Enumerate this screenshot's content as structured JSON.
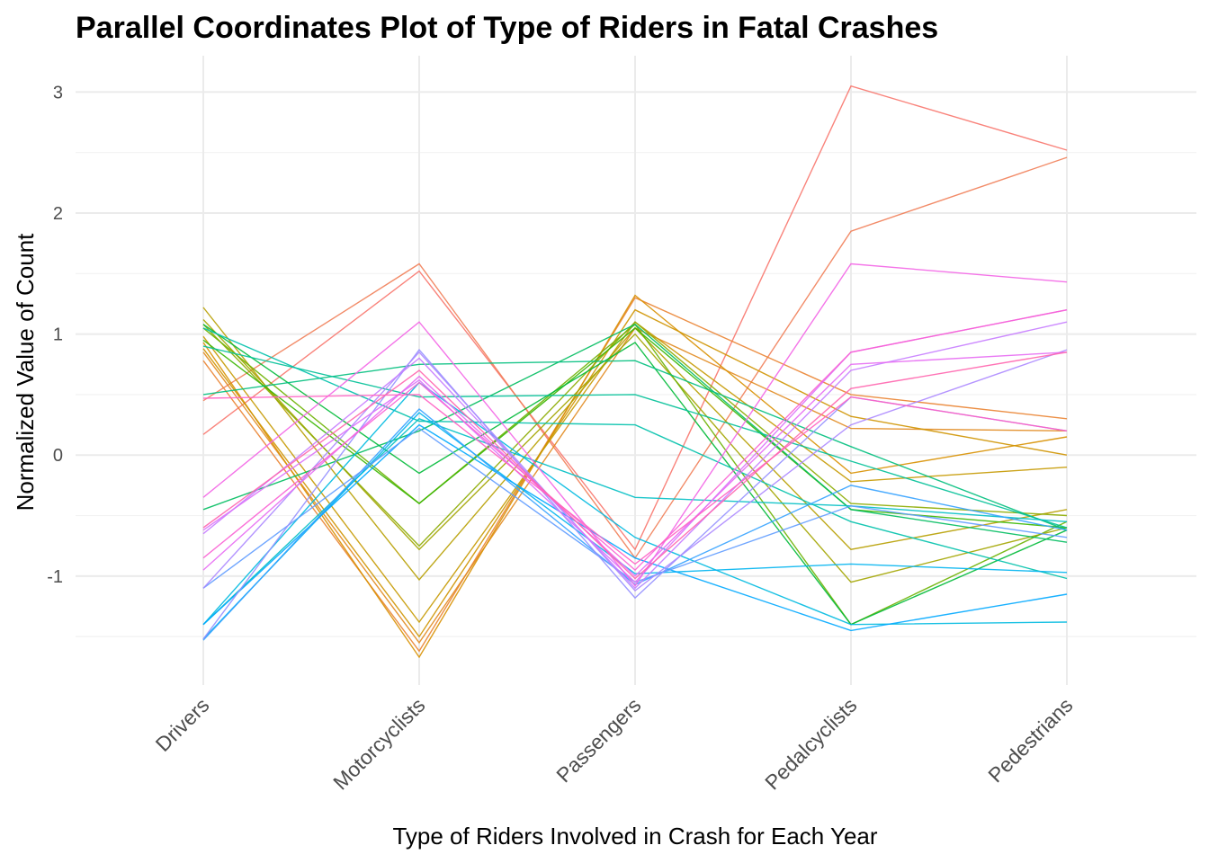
{
  "chart_data": {
    "type": "parallel-coordinates",
    "title": "Parallel Coordinates Plot of Type of Riders in Fatal Crashes",
    "xlabel": "Type of Riders Involved in Crash for Each Year",
    "ylabel": "Normalized Value of Count",
    "categories": [
      "Drivers",
      "Motorcyclists",
      "Passengers",
      "Pedalcyclists",
      "Pedestrians"
    ],
    "y_ticks": [
      3,
      2,
      1,
      0,
      -1
    ],
    "ylim": [
      -1.9,
      3.3
    ],
    "grid": true,
    "legend": "none",
    "series": [
      {
        "color": "#F8766D",
        "values": [
          0.17,
          1.52,
          -0.78,
          3.05,
          2.52
        ]
      },
      {
        "color": "#F17E58",
        "values": [
          0.45,
          1.58,
          -0.85,
          1.85,
          2.46
        ]
      },
      {
        "color": "#EA8331",
        "values": [
          0.78,
          -1.62,
          1.3,
          0.5,
          0.3
        ]
      },
      {
        "color": "#E18A1F",
        "values": [
          0.85,
          -1.55,
          1.05,
          0.22,
          0.2
        ]
      },
      {
        "color": "#D89000",
        "values": [
          0.93,
          -1.67,
          1.32,
          -0.15,
          0.15
        ]
      },
      {
        "color": "#CF9400",
        "values": [
          0.88,
          -1.5,
          1.2,
          0.32,
          0.0
        ]
      },
      {
        "color": "#C59900",
        "values": [
          0.98,
          -1.38,
          1.1,
          -0.22,
          -0.1
        ]
      },
      {
        "color": "#B79F00",
        "values": [
          1.22,
          -1.03,
          1.05,
          -0.78,
          -0.45
        ]
      },
      {
        "color": "#A3A500",
        "values": [
          1.12,
          -0.78,
          1.0,
          -1.05,
          -0.6
        ]
      },
      {
        "color": "#8CAB00",
        "values": [
          1.08,
          -0.75,
          1.1,
          -0.4,
          -0.5
        ]
      },
      {
        "color": "#6BB100",
        "values": [
          1.05,
          -0.4,
          1.08,
          -1.4,
          -0.55
        ]
      },
      {
        "color": "#39B600",
        "values": [
          0.95,
          -0.4,
          1.05,
          -0.45,
          -0.6
        ]
      },
      {
        "color": "#00BA38",
        "values": [
          1.08,
          -0.15,
          0.93,
          -1.4,
          -0.62
        ]
      },
      {
        "color": "#00BD5F",
        "values": [
          -0.45,
          0.2,
          1.08,
          -0.45,
          -0.72
        ]
      },
      {
        "color": "#00BF7D",
        "values": [
          0.5,
          0.75,
          0.78,
          0.07,
          -0.62
        ]
      },
      {
        "color": "#00C097",
        "values": [
          0.9,
          0.48,
          0.5,
          -0.05,
          -0.6
        ]
      },
      {
        "color": "#00C1AB",
        "values": [
          1.05,
          0.28,
          0.25,
          -0.55,
          -1.02
        ]
      },
      {
        "color": "#00BFC4",
        "values": [
          -1.4,
          0.3,
          -0.35,
          -0.42,
          -0.55
        ]
      },
      {
        "color": "#00BAE0",
        "values": [
          -1.4,
          0.6,
          -0.68,
          -1.4,
          -1.38
        ]
      },
      {
        "color": "#00B4EF",
        "values": [
          -1.52,
          0.35,
          -0.98,
          -0.9,
          -0.97
        ]
      },
      {
        "color": "#00A9FF",
        "values": [
          -1.4,
          0.25,
          -0.85,
          -1.45,
          -1.15
        ]
      },
      {
        "color": "#35A2FF",
        "values": [
          -1.53,
          0.38,
          -1.07,
          -0.25,
          -0.62
        ]
      },
      {
        "color": "#619CFF",
        "values": [
          -1.1,
          0.22,
          -1.05,
          -0.42,
          -0.68
        ]
      },
      {
        "color": "#9590FF",
        "values": [
          -1.52,
          0.87,
          -1.18,
          0.48,
          0.2
        ]
      },
      {
        "color": "#AC88FF",
        "values": [
          -1.1,
          0.85,
          -1.12,
          0.25,
          0.87
        ]
      },
      {
        "color": "#C77CFF",
        "values": [
          -0.65,
          0.8,
          -1.1,
          0.7,
          1.1
        ]
      },
      {
        "color": "#DC71FA",
        "values": [
          -0.62,
          0.62,
          -1.05,
          0.85,
          1.2
        ]
      },
      {
        "color": "#E76BF3",
        "values": [
          -0.95,
          0.65,
          -1.0,
          0.75,
          0.85
        ]
      },
      {
        "color": "#F365E6",
        "values": [
          -0.35,
          1.1,
          -1.08,
          1.58,
          1.43
        ]
      },
      {
        "color": "#FA62D4",
        "values": [
          -0.85,
          0.6,
          -0.95,
          0.85,
          1.2
        ]
      },
      {
        "color": "#FF61C3",
        "values": [
          0.47,
          0.5,
          -0.9,
          0.48,
          0.2
        ]
      },
      {
        "color": "#FF65AE",
        "values": [
          -0.6,
          0.7,
          -1.02,
          0.55,
          0.85
        ]
      }
    ]
  }
}
